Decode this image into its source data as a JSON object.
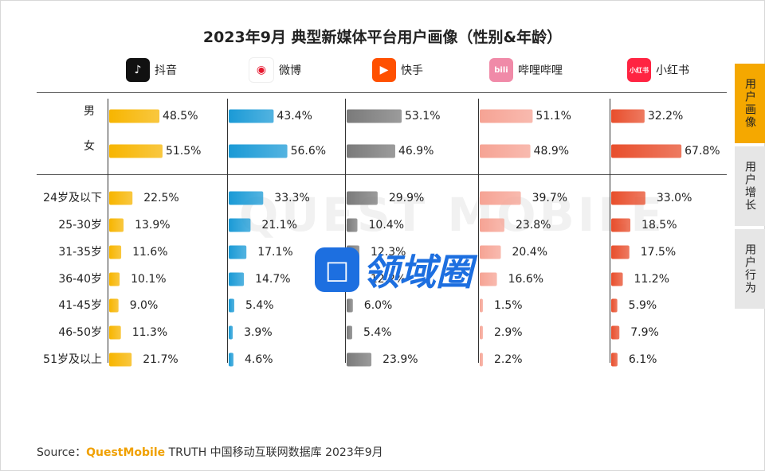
{
  "chart_data": {
    "type": "bar",
    "title": "2023年9月 典型新媒体平台用户画像（性别&年龄）",
    "gender_categories": [
      "男",
      "女"
    ],
    "age_categories": [
      "24岁及以下",
      "25-30岁",
      "31-35岁",
      "36-40岁",
      "41-45岁",
      "46-50岁",
      "51岁及以上"
    ],
    "series": [
      {
        "name": "抖音",
        "color": "#f7b500",
        "gender": [
          48.5,
          51.5
        ],
        "age": [
          22.5,
          13.9,
          11.6,
          10.1,
          9.0,
          11.3,
          21.7
        ]
      },
      {
        "name": "微博",
        "color": "#1a9ad6",
        "gender": [
          43.4,
          56.6
        ],
        "age": [
          33.3,
          21.1,
          17.1,
          14.7,
          5.4,
          3.9,
          4.6
        ]
      },
      {
        "name": "快手",
        "color": "#7a7a7a",
        "gender": [
          53.1,
          46.9
        ],
        "age": [
          29.9,
          10.4,
          12.3,
          12.2,
          6.0,
          5.4,
          23.9
        ]
      },
      {
        "name": "哔哩哔哩",
        "color": "#f6a394",
        "gender": [
          51.1,
          48.9
        ],
        "age": [
          39.7,
          23.8,
          20.4,
          16.6,
          1.5,
          2.9,
          2.2
        ]
      },
      {
        "name": "小红书",
        "color": "#e84e2c",
        "gender": [
          32.2,
          67.8
        ],
        "age": [
          33.0,
          18.5,
          17.5,
          11.2,
          5.9,
          7.9,
          6.1
        ]
      }
    ]
  },
  "platform_icons": [
    {
      "name": "douyin-logo-icon",
      "color": "#111111",
      "glyph": "♪"
    },
    {
      "name": "weibo-logo-icon",
      "color": "#ffffff",
      "glyph": "◉"
    },
    {
      "name": "kuaishou-logo-icon",
      "color": "#ff5000",
      "glyph": "▶"
    },
    {
      "name": "bilibili-logo-icon",
      "color": "#f08aa8",
      "glyph": "bili"
    },
    {
      "name": "xiaohongshu-logo-icon",
      "color": "#ff2442",
      "glyph": "小红书"
    }
  ],
  "side_tabs": [
    "用户画像",
    "用户增长",
    "用户行为"
  ],
  "source": {
    "prefix": "Source：",
    "brand": "QuestMobile",
    "rest": "TRUTH 中国移动互联网数据库 2023年9月"
  },
  "watermark": {
    "icon_glyph": "□",
    "text": "领域圈",
    "bg_text": "QUEST MOBILE"
  }
}
